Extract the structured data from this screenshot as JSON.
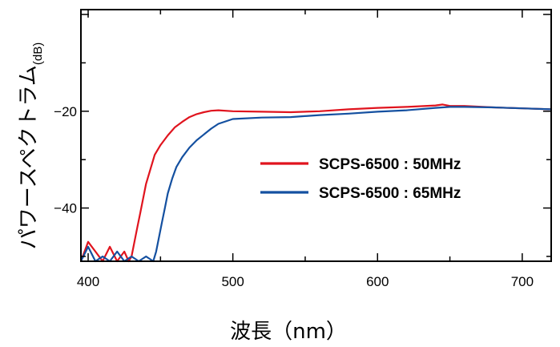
{
  "chart_data": {
    "type": "line",
    "xlabel": "波長（nm）",
    "ylabel": "パワースペクトラム",
    "ylabel_unit": "(dB)",
    "xlim": [
      395,
      720
    ],
    "ylim": [
      -51,
      1
    ],
    "x_ticks": [
      400,
      500,
      600,
      700
    ],
    "x_tick_labels": [
      "400",
      "500",
      "600",
      "700"
    ],
    "y_ticks": [
      -20,
      -40
    ],
    "y_tick_labels": [
      "−20",
      "−40"
    ],
    "grid": false,
    "legend_position": "right",
    "series": [
      {
        "name": "SCPS-6500 : 50MHz",
        "color": "#e0141e",
        "x": [
          395,
          400,
          405,
          410,
          415,
          420,
          425,
          428,
          430,
          432,
          434,
          436,
          438,
          440,
          443,
          446,
          450,
          455,
          460,
          465,
          470,
          475,
          480,
          485,
          490,
          500,
          520,
          540,
          560,
          580,
          600,
          620,
          640,
          645,
          650,
          660,
          680,
          700,
          720
        ],
        "y": [
          -51,
          -47,
          -49,
          -51,
          -48,
          -51,
          -49,
          -51,
          -50,
          -47,
          -44,
          -41,
          -38,
          -35,
          -32,
          -29,
          -27,
          -25,
          -23.3,
          -22.2,
          -21.2,
          -20.6,
          -20.2,
          -19.9,
          -19.8,
          -20.0,
          -20.1,
          -20.2,
          -20.0,
          -19.6,
          -19.3,
          -19.1,
          -18.8,
          -18.6,
          -18.9,
          -18.9,
          -19.2,
          -19.4,
          -19.6
        ]
      },
      {
        "name": "SCPS-6500 : 65MHz",
        "color": "#1450a0",
        "x": [
          395,
          400,
          405,
          410,
          415,
          420,
          425,
          430,
          435,
          440,
          445,
          447,
          449,
          451,
          453,
          455,
          458,
          461,
          465,
          470,
          475,
          480,
          485,
          490,
          500,
          520,
          540,
          560,
          580,
          600,
          620,
          640,
          650,
          660,
          680,
          700,
          720
        ],
        "y": [
          -51,
          -48,
          -51,
          -50,
          -51,
          -49,
          -51,
          -50,
          -51,
          -50,
          -51,
          -49,
          -46,
          -43,
          -40,
          -37,
          -34,
          -31.5,
          -29.5,
          -27.5,
          -26,
          -24.8,
          -23.6,
          -22.6,
          -21.6,
          -21.3,
          -21.2,
          -20.8,
          -20.5,
          -20.1,
          -19.8,
          -19.3,
          -19.1,
          -19.1,
          -19.2,
          -19.4,
          -19.6
        ]
      }
    ]
  }
}
